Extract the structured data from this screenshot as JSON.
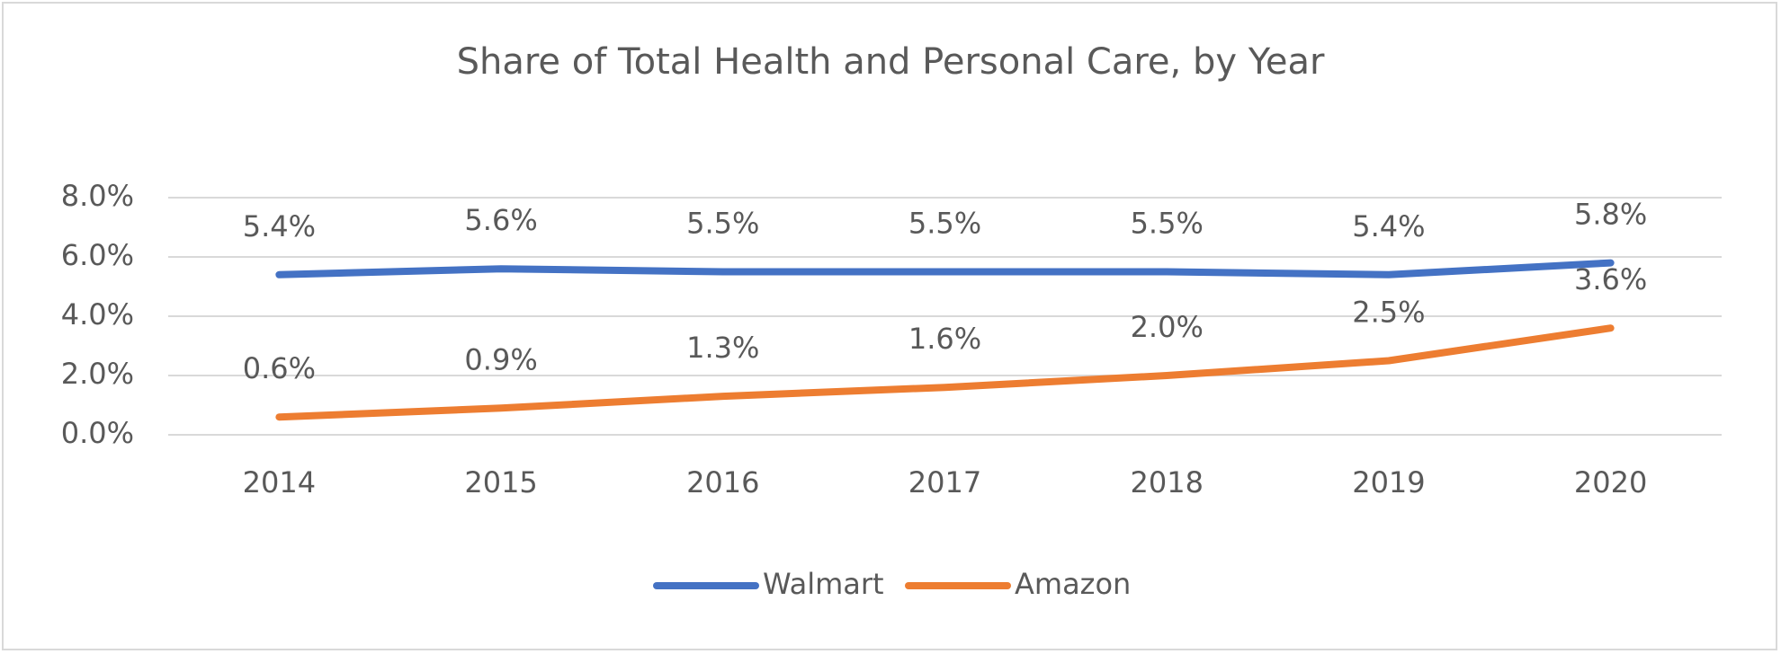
{
  "chart_data": {
    "type": "line",
    "title": "Share of Total Health and Personal Care, by Year",
    "categories": [
      "2014",
      "2015",
      "2016",
      "2017",
      "2018",
      "2019",
      "2020"
    ],
    "series": [
      {
        "name": "Walmart",
        "color": "#4472c4",
        "values": [
          5.4,
          5.6,
          5.5,
          5.5,
          5.5,
          5.4,
          5.8
        ],
        "value_labels": [
          "5.4%",
          "5.6%",
          "5.5%",
          "5.5%",
          "5.5%",
          "5.4%",
          "5.8%"
        ]
      },
      {
        "name": "Amazon",
        "color": "#ed7d31",
        "values": [
          0.6,
          0.9,
          1.3,
          1.6,
          2.0,
          2.5,
          3.6
        ],
        "value_labels": [
          "0.6%",
          "0.9%",
          "1.3%",
          "1.6%",
          "2.0%",
          "2.5%",
          "3.6%"
        ]
      }
    ],
    "ylim": [
      0,
      8
    ],
    "yticks": [
      {
        "value": 0,
        "label": "0.0%"
      },
      {
        "value": 2,
        "label": "2.0%"
      },
      {
        "value": 4,
        "label": "4.0%"
      },
      {
        "value": 6,
        "label": "6.0%"
      },
      {
        "value": 8,
        "label": "8.0%"
      }
    ],
    "grid": true,
    "legend": "bottom"
  }
}
